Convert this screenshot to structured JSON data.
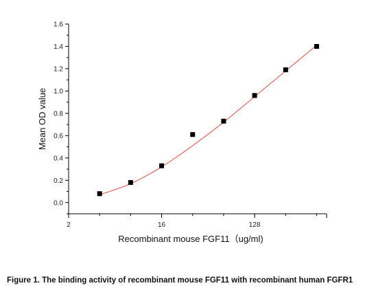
{
  "chart_data": {
    "type": "scatter",
    "title": "",
    "xlabel": "Recombinant mouse FGF11（ug/ml)",
    "ylabel": "Mean OD value",
    "x_scale": "log2",
    "xlim": [
      2,
      640
    ],
    "ylim": [
      -0.1,
      1.6
    ],
    "x_ticks": [
      2,
      16,
      128
    ],
    "x_tick_labels": [
      "2",
      "16",
      "128"
    ],
    "y_ticks": [
      0.0,
      0.2,
      0.4,
      0.6,
      0.8,
      1.0,
      1.2,
      1.4,
      1.6
    ],
    "y_tick_labels": [
      "0.0",
      "0.2",
      "0.4",
      "0.6",
      "0.8",
      "1.0",
      "1.2",
      "1.4",
      "1.6"
    ],
    "grid": false,
    "series": [
      {
        "marker": "square",
        "color": "#000000",
        "x": [
          4,
          8,
          16,
          32,
          64,
          128,
          256,
          512
        ],
        "y": [
          0.08,
          0.18,
          0.33,
          0.61,
          0.73,
          0.96,
          1.19,
          1.4
        ]
      }
    ],
    "fit_line": {
      "color": "#e8645a",
      "x": [
        4,
        8,
        16,
        32,
        64,
        128,
        256,
        512
      ],
      "y": [
        0.07,
        0.17,
        0.32,
        0.51,
        0.72,
        0.95,
        1.18,
        1.41
      ]
    }
  },
  "caption": "Figure 1. The binding activity of recombinant mouse FGF11 with recombinant human FGFR1"
}
